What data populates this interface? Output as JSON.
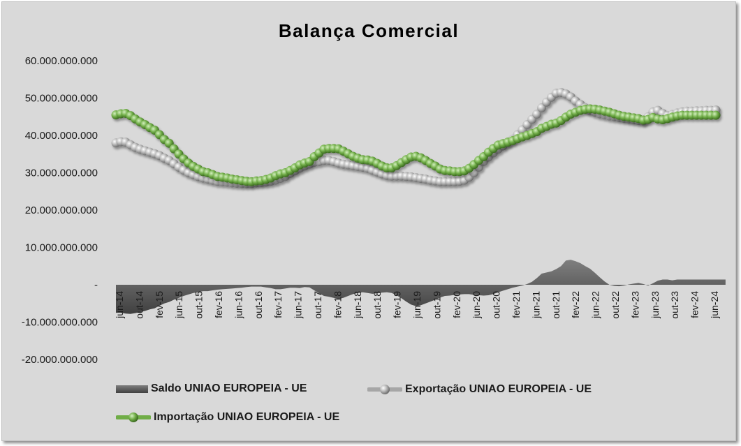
{
  "chart_data": {
    "type": "line",
    "title": "Balança Comercial",
    "xlabel": "",
    "ylabel": "",
    "ylim": [
      -20000000000,
      60000000000
    ],
    "y_ticks": [
      60000000000,
      50000000000,
      40000000000,
      30000000000,
      20000000000,
      10000000000,
      0,
      -10000000000,
      -20000000000
    ],
    "y_tick_labels": [
      "60.000.000.000",
      "50.000.000.000",
      "40.000.000.000",
      "30.000.000.000",
      "20.000.000.000",
      "10.000.000.000",
      "-",
      "-10.000.000.000",
      "-20.000.000.000"
    ],
    "x_tick_labels": [
      "jun-14",
      "out-14",
      "fev-15",
      "jun-15",
      "out-15",
      "fev-16",
      "jun-16",
      "out-16",
      "fev-17",
      "jun-17",
      "out-17",
      "fev-18",
      "jun-18",
      "out-18",
      "fev-19",
      "jun-19",
      "out-19",
      "fev-20",
      "jun-20",
      "out-20",
      "fev-21",
      "jun-21",
      "out-21",
      "fev-22",
      "jun-22",
      "out-22",
      "fev-23",
      "jun-23",
      "out-23",
      "fev-24",
      "jun-24"
    ],
    "grid": false,
    "legend_position": "bottom",
    "colors": {
      "saldo": "#595959",
      "exportacao": "#a6a6a6",
      "importacao": "#70ad47"
    },
    "series": [
      {
        "name": "Saldo UNIAO EUROPEIA - UE",
        "type": "area",
        "values": [
          -7500000000,
          -7500000000,
          -7700000000,
          -7800000000,
          -7600000000,
          -7300000000,
          -7000000000,
          -6600000000,
          -6300000000,
          -5600000000,
          -5000000000,
          -4600000000,
          -4000000000,
          -3500000000,
          -3000000000,
          -2600000000,
          -2200000000,
          -2000000000,
          -1700000000,
          -1700000000,
          -1500000000,
          -1300000000,
          -1200000000,
          -1100000000,
          -1000000000,
          -900000000,
          -800000000,
          -600000000,
          -500000000,
          -500000000,
          -500000000,
          -700000000,
          -900000000,
          -1200000000,
          -1200000000,
          -1000000000,
          -800000000,
          -800000000,
          -900000000,
          -600000000,
          -700000000,
          -1500000000,
          -2300000000,
          -3000000000,
          -3200000000,
          -3500000000,
          -3800000000,
          -3500000000,
          -3000000000,
          -2500000000,
          -2200000000,
          -2000000000,
          -2200000000,
          -2400000000,
          -2300000000,
          -2100000000,
          -2000000000,
          -2200000000,
          -2800000000,
          -3600000000,
          -4500000000,
          -5300000000,
          -5700000000,
          -5500000000,
          -5000000000,
          -4500000000,
          -4000000000,
          -3400000000,
          -3000000000,
          -2900000000,
          -2700000000,
          -2600000000,
          -2500000000,
          -2500000000,
          -2700000000,
          -2800000000,
          -2900000000,
          -2800000000,
          -2500000000,
          -2000000000,
          -1600000000,
          -1200000000,
          -800000000,
          -500000000,
          -200000000,
          200000000,
          800000000,
          1800000000,
          3000000000,
          3300000000,
          3600000000,
          4200000000,
          5000000000,
          6500000000,
          6700000000,
          6300000000,
          5800000000,
          5000000000,
          4300000000,
          3200000000,
          2000000000,
          900000000,
          0,
          -300000000,
          -400000000,
          -200000000,
          100000000,
          300000000,
          500000000,
          200000000,
          -200000000,
          400000000,
          1100000000,
          1400000000,
          1400000000,
          1200000000,
          1400000000,
          1400000000,
          1400000000,
          1400000000,
          1400000000,
          1400000000,
          1400000000,
          1400000000,
          1400000000,
          1400000000,
          1400000000
        ]
      },
      {
        "name": "Exportação UNIAO EUROPEIA - UE",
        "type": "line",
        "values": [
          38000000000,
          38300000000,
          38200000000,
          37500000000,
          36800000000,
          36300000000,
          35900000000,
          35500000000,
          35100000000,
          34600000000,
          33900000000,
          33300000000,
          32400000000,
          31500000000,
          30700000000,
          30000000000,
          29500000000,
          29000000000,
          28600000000,
          28300000000,
          28000000000,
          27700000000,
          27600000000,
          27500000000,
          27300000000,
          27200000000,
          27100000000,
          27100000000,
          27100000000,
          27300000000,
          27400000000,
          27500000000,
          27700000000,
          28000000000,
          28500000000,
          29000000000,
          29800000000,
          30500000000,
          31200000000,
          31800000000,
          32300000000,
          32800000000,
          33000000000,
          33300000000,
          33300000000,
          33000000000,
          32600000000,
          32300000000,
          32100000000,
          31900000000,
          31700000000,
          31500000000,
          31200000000,
          30700000000,
          30200000000,
          29700000000,
          29300000000,
          29100000000,
          29100000000,
          29100000000,
          29000000000,
          28900000000,
          28700000000,
          28500000000,
          28300000000,
          28000000000,
          27800000000,
          27600000000,
          27600000000,
          27600000000,
          27600000000,
          27700000000,
          28000000000,
          28800000000,
          30000000000,
          31500000000,
          33000000000,
          34200000000,
          35300000000,
          36300000000,
          37200000000,
          38100000000,
          39000000000,
          40200000000,
          41500000000,
          42900000000,
          44300000000,
          45700000000,
          47400000000,
          48900000000,
          50200000000,
          51300000000,
          51500000000,
          51100000000,
          50300000000,
          49200000000,
          48300000000,
          47400000000,
          46700000000,
          46200000000,
          45800000000,
          45500000000,
          45200000000,
          45000000000,
          44800000000,
          44600000000,
          44400000000,
          44200000000,
          44000000000,
          43900000000,
          45000000000,
          46300000000,
          46700000000,
          45900000000,
          45300000000,
          45600000000,
          46000000000,
          46300000000,
          46500000000,
          46500000000,
          46600000000,
          46600000000,
          46700000000,
          46700000000,
          46800000000
        ]
      },
      {
        "name": "Importação UNIAO EUROPEIA - UE",
        "type": "line",
        "values": [
          45500000000,
          45800000000,
          45900000000,
          45300000000,
          44400000000,
          43600000000,
          42900000000,
          42100000000,
          41400000000,
          40200000000,
          38900000000,
          37900000000,
          36400000000,
          35000000000,
          33700000000,
          32600000000,
          31700000000,
          31000000000,
          30300000000,
          30000000000,
          29500000000,
          29000000000,
          28800000000,
          28600000000,
          28300000000,
          28100000000,
          27900000000,
          27700000000,
          27600000000,
          27800000000,
          27900000000,
          28200000000,
          28600000000,
          29200000000,
          29700000000,
          30000000000,
          30600000000,
          31300000000,
          32100000000,
          32600000000,
          33000000000,
          34300000000,
          35300000000,
          36300000000,
          36500000000,
          36500000000,
          36400000000,
          35800000000,
          35100000000,
          34400000000,
          33900000000,
          33500000000,
          33400000000,
          33100000000,
          32500000000,
          31800000000,
          31300000000,
          31300000000,
          31900000000,
          32700000000,
          33500000000,
          34200000000,
          34400000000,
          34000000000,
          33300000000,
          32500000000,
          31800000000,
          31000000000,
          30600000000,
          30500000000,
          30300000000,
          30300000000,
          30500000000,
          31200000000,
          32200000000,
          33300000000,
          34300000000,
          35500000000,
          36500000000,
          37400000000,
          37800000000,
          38200000000,
          38600000000,
          39100000000,
          39600000000,
          40000000000,
          40500000000,
          41000000000,
          41900000000,
          42400000000,
          43000000000,
          43300000000,
          44000000000,
          44900000000,
          45700000000,
          46200000000,
          46700000000,
          47000000000,
          47100000000,
          47000000000,
          46800000000,
          46500000000,
          46200000000,
          45800000000,
          45400000000,
          45100000000,
          44900000000,
          44700000000,
          44500000000,
          44100000000,
          44300000000,
          44800000000,
          44400000000,
          44200000000,
          44500000000,
          44900000000,
          45200000000,
          45400000000,
          45400000000,
          45400000000,
          45400000000,
          45400000000,
          45400000000,
          45400000000,
          45400000000
        ]
      }
    ]
  }
}
